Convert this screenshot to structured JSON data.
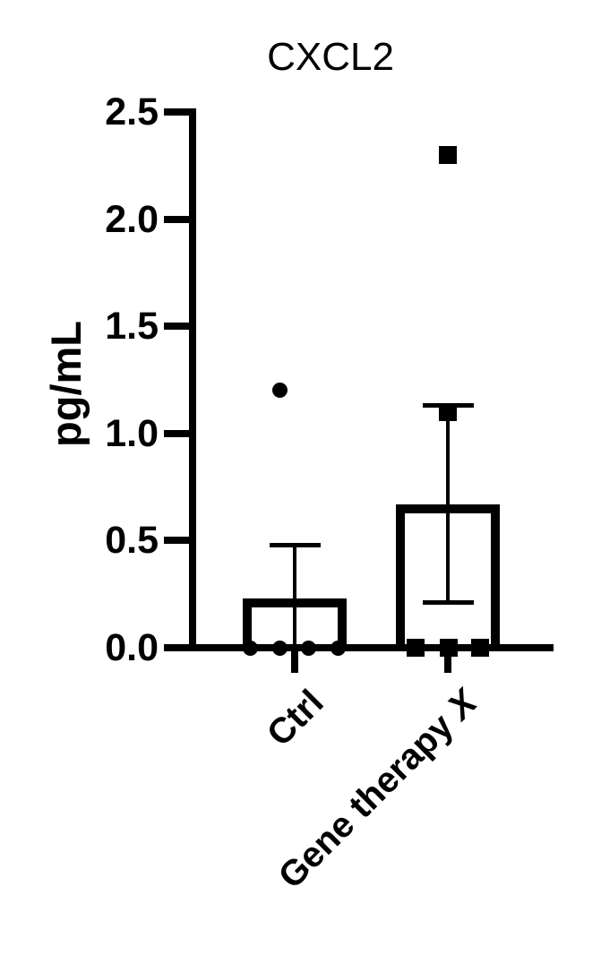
{
  "figure": {
    "background": "#ffffff",
    "ink_color": "#000000"
  },
  "chart_data": {
    "type": "bar",
    "title": "CXCL2",
    "ylabel": "pg/mL",
    "xlabel": "",
    "ylim": [
      0,
      2.5
    ],
    "ytick_interval": 0.5,
    "grid": "off",
    "legend": "none",
    "yticks": [
      {
        "value": 0.0,
        "label": "0.0"
      },
      {
        "value": 0.5,
        "label": "0.5"
      },
      {
        "value": 1.0,
        "label": "1.0"
      },
      {
        "value": 1.5,
        "label": "1.5"
      },
      {
        "value": 2.0,
        "label": "2.0"
      },
      {
        "value": 2.5,
        "label": "2.5"
      }
    ],
    "categories": [
      "Ctrl",
      "Gene therapy X"
    ],
    "x_labels": [
      {
        "text": "Ctrl",
        "italic": ""
      },
      {
        "text": "Gene therapy ",
        "italic": "X"
      }
    ],
    "series": [
      {
        "name": "Ctrl",
        "marker": "circle",
        "bar_mean": 0.23,
        "err_low": 0.0,
        "err_high": 0.48,
        "points": [
          {
            "value": 0,
            "dx": -50
          },
          {
            "value": 0,
            "dx": -17
          },
          {
            "value": 0,
            "dx": 15
          },
          {
            "value": 0,
            "dx": 48
          },
          {
            "value": 1.2,
            "dx": -17
          }
        ]
      },
      {
        "name": "Gene therapy X",
        "marker": "square",
        "bar_mean": 0.67,
        "err_low": 0.21,
        "err_high": 1.13,
        "points": [
          {
            "value": 0,
            "dx": -36
          },
          {
            "value": 0,
            "dx": 1
          },
          {
            "value": 0,
            "dx": 36
          },
          {
            "value": 1.1,
            "dx": 0
          },
          {
            "value": 2.3,
            "dx": 0
          }
        ]
      }
    ]
  }
}
